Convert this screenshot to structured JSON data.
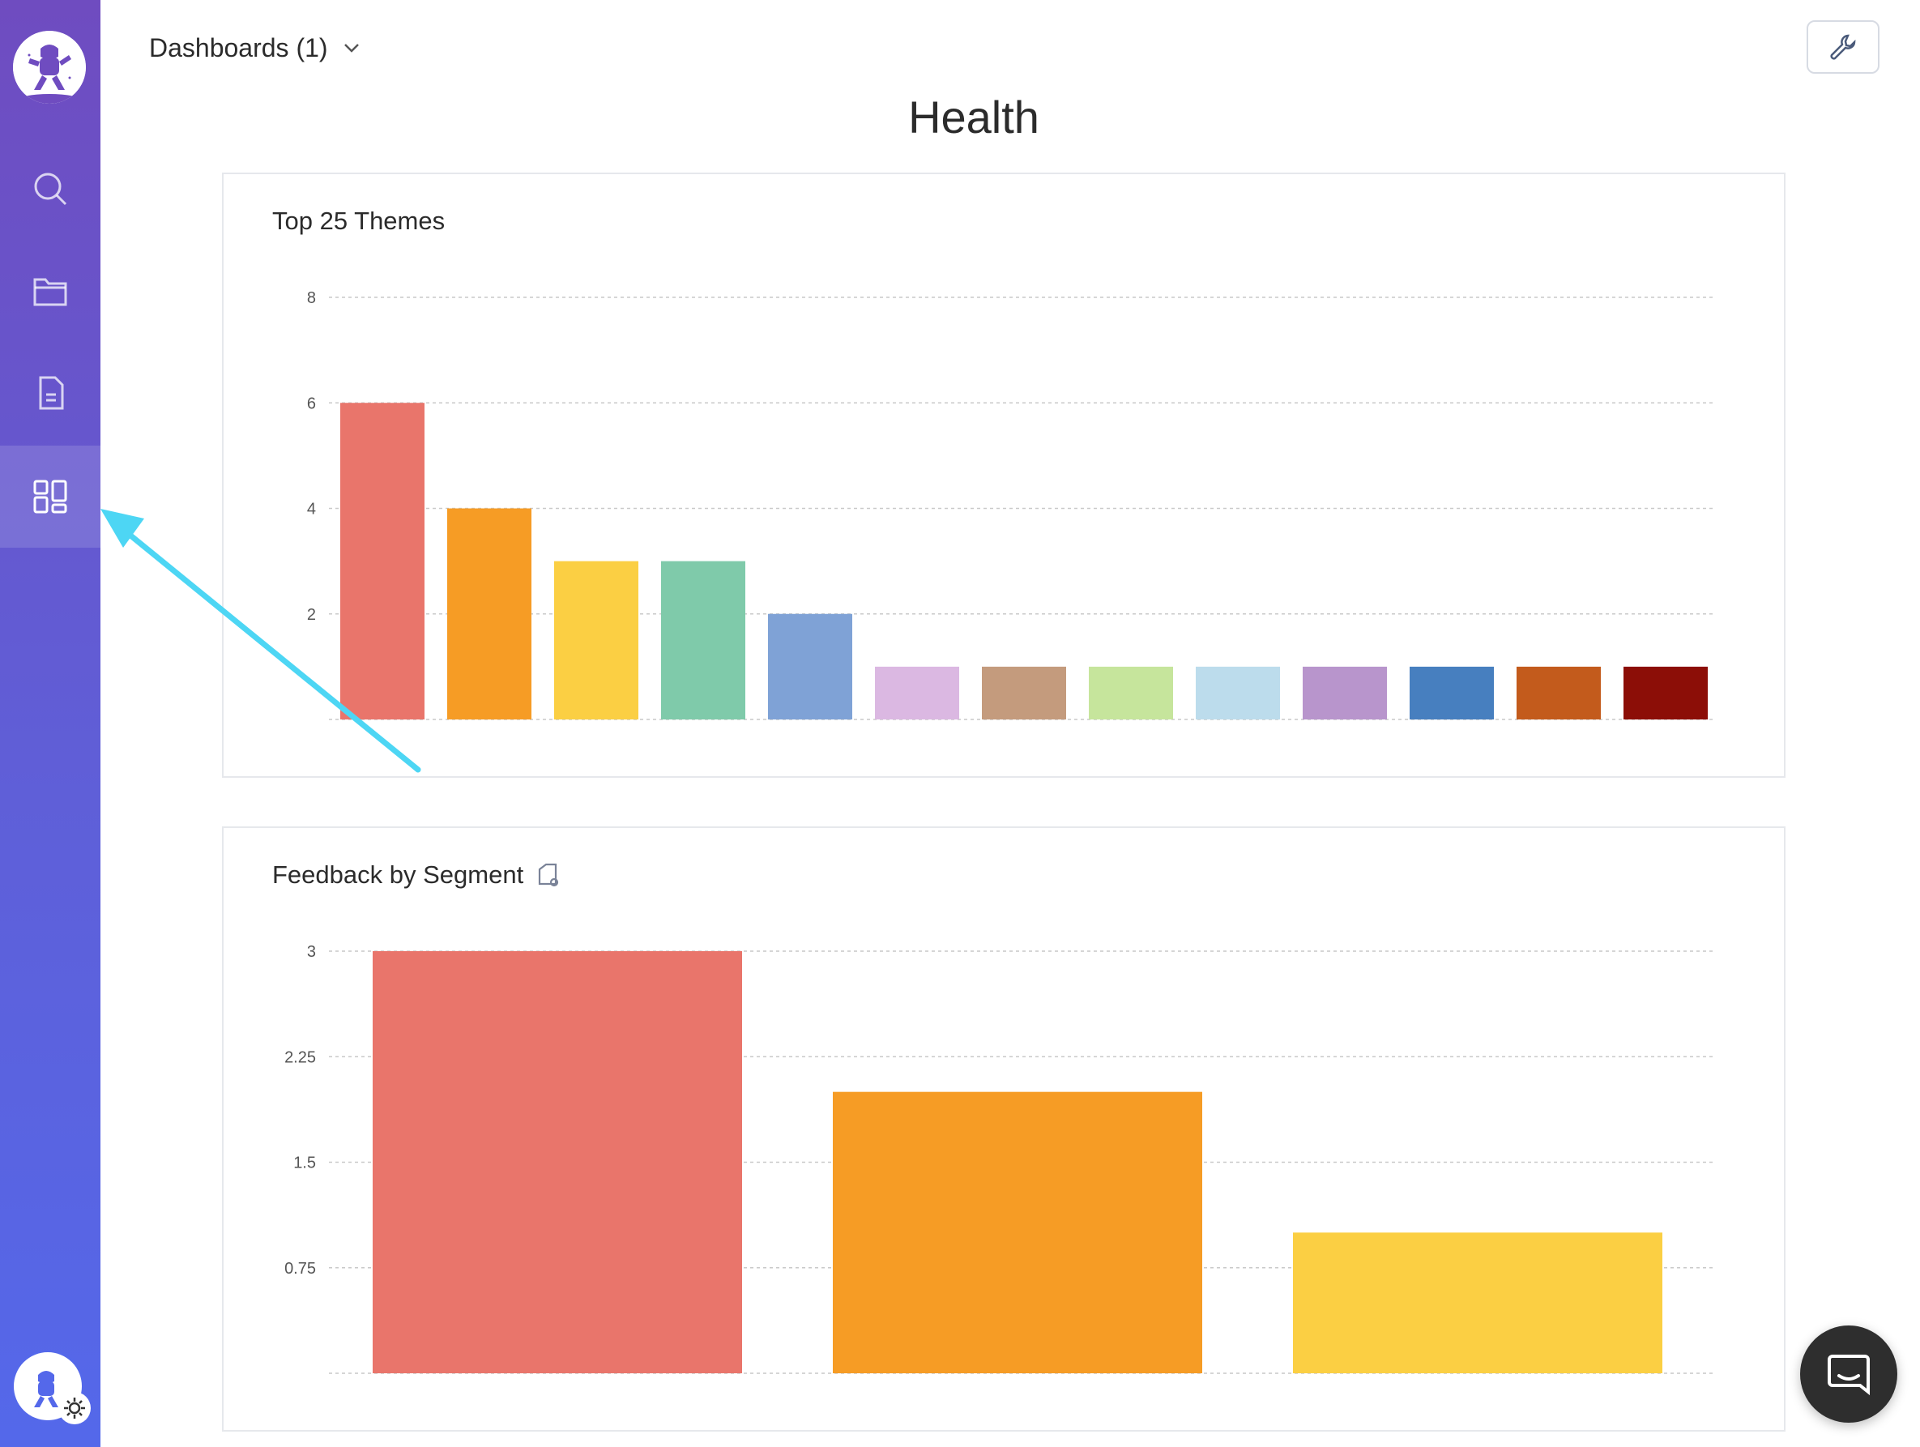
{
  "app": {
    "nav": [
      {
        "id": "search",
        "icon": "search-icon",
        "label": "Search",
        "active": false
      },
      {
        "id": "folder",
        "icon": "folder-icon",
        "label": "Folders",
        "active": false
      },
      {
        "id": "document",
        "icon": "document-icon",
        "label": "Documents",
        "active": false
      },
      {
        "id": "dashboards",
        "icon": "dashboard-grid-icon",
        "label": "Dashboards",
        "active": true
      }
    ],
    "brand_color": "#6f4cc0"
  },
  "header": {
    "dashboard_select": "Dashboards (1)",
    "page_title": "Health"
  },
  "annotation": {
    "arrow_color": "#4dd6f4",
    "points_to": "dashboards"
  },
  "chart_data": [
    {
      "type": "bar",
      "title": "Top 25 Themes",
      "categories": [
        "",
        "",
        "",
        "",
        "",
        "",
        "",
        "",
        "",
        "",
        "",
        "",
        ""
      ],
      "values": [
        6,
        4,
        3,
        3,
        2,
        1,
        1,
        1,
        1,
        1,
        1,
        1,
        1
      ],
      "colors": [
        "#e9756b",
        "#f69c25",
        "#fbcf43",
        "#7fcaaa",
        "#7fa2d6",
        "#dbb8e2",
        "#c49b7d",
        "#c6e59c",
        "#bcdcec",
        "#b895cc",
        "#477fbf",
        "#c35b1c",
        "#8c0e07"
      ],
      "ylim": [
        0,
        8
      ],
      "yticks": [
        2,
        4,
        6,
        8
      ],
      "grid": true,
      "legend": "none"
    },
    {
      "type": "bar",
      "title": "Feedback by Segment",
      "categories": [
        "",
        "",
        ""
      ],
      "values": [
        3,
        2,
        1
      ],
      "colors": [
        "#e9756b",
        "#f69c25",
        "#fbcf43"
      ],
      "ylim": [
        0,
        3
      ],
      "yticks": [
        0.75,
        1.5,
        2.25,
        3
      ],
      "ytick_labels": [
        "0.75",
        "1.5",
        "2.25",
        "3"
      ],
      "grid": true,
      "legend": "none"
    }
  ]
}
